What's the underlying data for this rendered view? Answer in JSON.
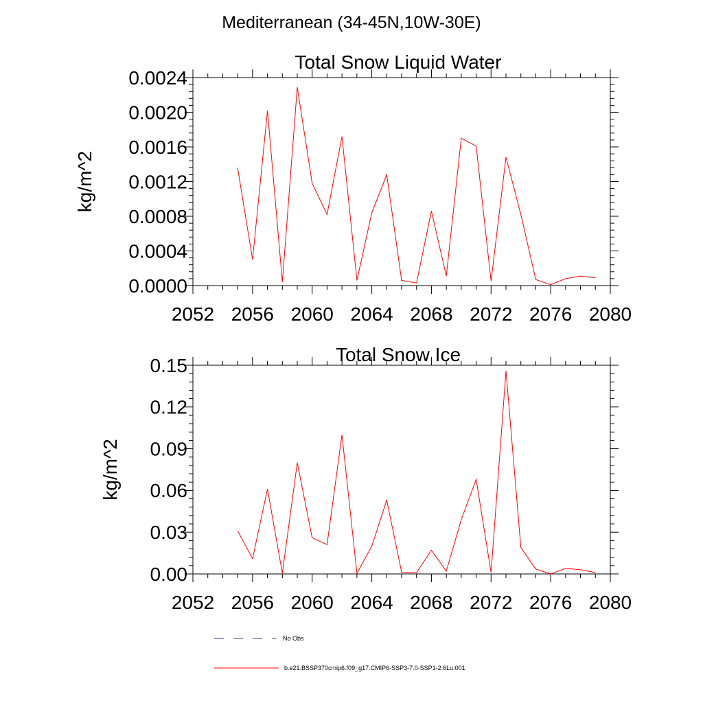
{
  "figure": {
    "main_title": "Mediterranean (34-45N,10W-30E)",
    "line_color": "#ff0000",
    "obs_color": "#3b3b8f"
  },
  "legend": {
    "obs_label": "No Obs",
    "model_label": "b.e21.BSSP370cmip6.f09_g17.CMIP6-SSP3-7.0-SSP1-2.6Lu.001"
  },
  "chart_data": [
    {
      "type": "line",
      "title": "Total Snow Liquid Water",
      "ylabel": "kg/m^2",
      "xlabel": "",
      "xlim": [
        2052,
        2080
      ],
      "ylim": [
        0,
        0.0024
      ],
      "xticks": [
        "2052",
        "2056",
        "2060",
        "2064",
        "2068",
        "2072",
        "2076",
        "2080"
      ],
      "yticks": [
        "0.0000",
        "0.0004",
        "0.0008",
        "0.0012",
        "0.0016",
        "0.0020",
        "0.0024"
      ],
      "grid": false,
      "series": [
        {
          "name": "b.e21.BSSP370cmip6.f09_g17.CMIP6-SSP3-7.0-SSP1-2.6Lu.001",
          "x": [
            2055,
            2056,
            2057,
            2058,
            2059,
            2060,
            2061,
            2062,
            2063,
            2064,
            2065,
            2066,
            2067,
            2068,
            2069,
            2070,
            2071,
            2072,
            2073,
            2074,
            2075,
            2076,
            2077,
            2078,
            2079
          ],
          "values": [
            0.00136,
            0.0003,
            0.00202,
            4e-05,
            0.00229,
            0.00118,
            0.00082,
            0.00172,
            6e-05,
            0.00084,
            0.00128,
            6e-05,
            3e-05,
            0.00086,
            0.00011,
            0.0017,
            0.00161,
            5e-05,
            0.00148,
            0.00082,
            7e-05,
            1e-05,
            8e-05,
            0.00011,
            9e-05
          ]
        }
      ]
    },
    {
      "type": "line",
      "title": "Total Snow Ice",
      "ylabel": "kg/m^2",
      "xlabel": "",
      "xlim": [
        2052,
        2080
      ],
      "ylim": [
        0,
        0.15
      ],
      "xticks": [
        "2052",
        "2056",
        "2060",
        "2064",
        "2068",
        "2072",
        "2076",
        "2080"
      ],
      "yticks": [
        "0.00",
        "0.03",
        "0.06",
        "0.09",
        "0.12",
        "0.15"
      ],
      "grid": false,
      "series": [
        {
          "name": "b.e21.BSSP370cmip6.f09_g17.CMIP6-SSP3-7.0-SSP1-2.6Lu.001",
          "x": [
            2055,
            2056,
            2057,
            2058,
            2059,
            2060,
            2061,
            2062,
            2063,
            2064,
            2065,
            2066,
            2067,
            2068,
            2069,
            2070,
            2071,
            2072,
            2073,
            2074,
            2075,
            2076,
            2077,
            2078,
            2079
          ],
          "values": [
            0.031,
            0.011,
            0.061,
            0.0005,
            0.08,
            0.026,
            0.021,
            0.1,
            0.0005,
            0.02,
            0.053,
            0.0012,
            0.001,
            0.017,
            0.002,
            0.039,
            0.068,
            0.001,
            0.146,
            0.019,
            0.0035,
            0.0,
            0.004,
            0.003,
            0.001
          ]
        }
      ]
    }
  ]
}
